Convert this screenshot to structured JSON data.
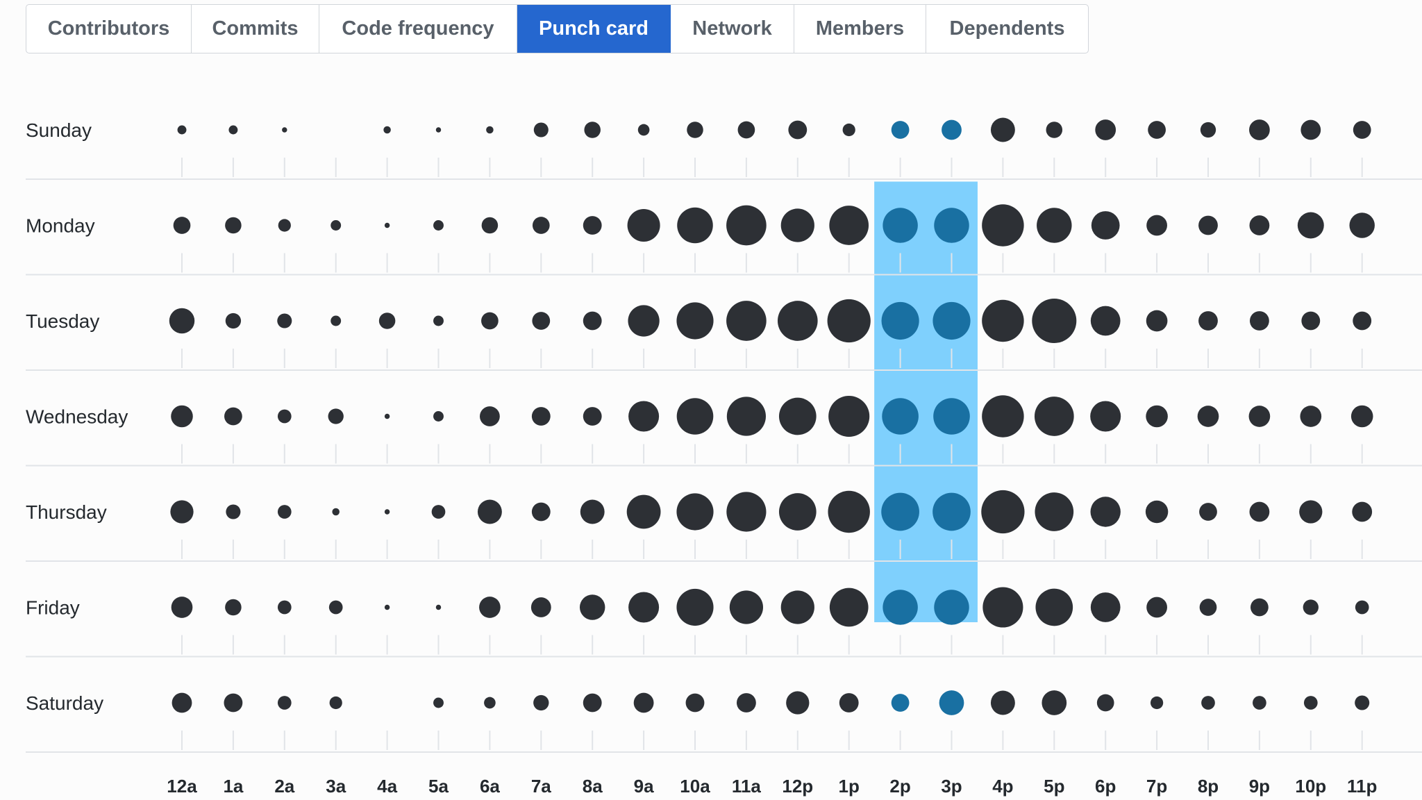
{
  "tabs": [
    {
      "label": "Contributors",
      "active": false
    },
    {
      "label": "Commits",
      "active": false
    },
    {
      "label": "Code frequency",
      "active": false
    },
    {
      "label": "Punch card",
      "active": true
    },
    {
      "label": "Network",
      "active": false
    },
    {
      "label": "Members",
      "active": false
    },
    {
      "label": "Dependents",
      "active": false
    }
  ],
  "colors": {
    "accent": "#2567cf",
    "dot": "#2d3035",
    "highlight_band": "#7fd0fd",
    "highlight_dot": "#1970a2",
    "grid": "#e1e4e8"
  },
  "chart_data": {
    "type": "scatter",
    "title": "",
    "days": [
      "Sunday",
      "Monday",
      "Tuesday",
      "Wednesday",
      "Thursday",
      "Friday",
      "Saturday"
    ],
    "hours": [
      "12a",
      "1a",
      "2a",
      "3a",
      "4a",
      "5a",
      "6a",
      "7a",
      "8a",
      "9a",
      "10a",
      "11a",
      "12p",
      "1p",
      "2p",
      "3p",
      "4p",
      "5p",
      "6p",
      "7p",
      "8p",
      "9p",
      "10p",
      "11p"
    ],
    "highlighted_hours": [
      "2p",
      "3p"
    ],
    "values": [
      [
        3,
        3,
        1,
        0,
        2,
        1,
        2,
        8,
        10,
        5,
        10,
        11,
        13,
        6,
        12,
        15,
        22,
        10,
        16,
        12,
        9,
        16,
        15,
        12
      ],
      [
        11,
        10,
        6,
        4,
        1,
        4,
        10,
        11,
        13,
        40,
        48,
        60,
        42,
        58,
        46,
        46,
        66,
        46,
        30,
        16,
        14,
        15,
        26,
        24
      ],
      [
        24,
        9,
        8,
        4,
        10,
        4,
        11,
        12,
        13,
        37,
        51,
        60,
        60,
        70,
        53,
        53,
        66,
        74,
        33,
        17,
        14,
        14,
        13,
        13
      ],
      [
        18,
        12,
        7,
        9,
        1,
        4,
        15,
        13,
        13,
        35,
        50,
        57,
        52,
        63,
        50,
        50,
        66,
        58,
        35,
        18,
        17,
        17,
        17,
        18
      ],
      [
        20,
        8,
        7,
        2,
        1,
        7,
        22,
        13,
        22,
        43,
        51,
        59,
        52,
        66,
        54,
        54,
        70,
        56,
        34,
        19,
        12,
        15,
        20,
        15
      ],
      [
        17,
        10,
        7,
        7,
        1,
        1,
        17,
        15,
        24,
        35,
        51,
        42,
        42,
        56,
        46,
        46,
        61,
        52,
        33,
        16,
        11,
        12,
        9,
        7
      ],
      [
        15,
        13,
        7,
        6,
        0,
        4,
        5,
        9,
        13,
        15,
        13,
        14,
        20,
        14,
        12,
        23,
        22,
        23,
        11,
        6,
        7,
        7,
        7,
        8
      ]
    ],
    "size_encoding": "dot area proportional to commit count"
  }
}
